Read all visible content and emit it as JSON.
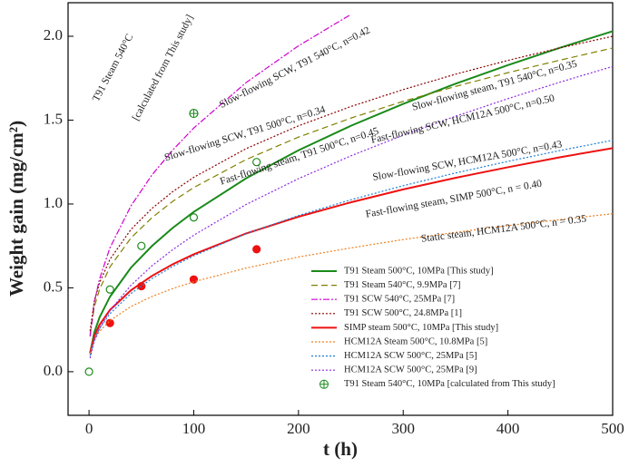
{
  "chart_data": {
    "type": "line",
    "xlabel": "t (h)",
    "ylabel": "Weight gain (mg/cm²)",
    "xlim": [
      -20,
      500
    ],
    "ylim": [
      -0.26,
      2.2
    ],
    "xticks": [
      0,
      100,
      200,
      300,
      400,
      500
    ],
    "yticks": [
      {
        "value": 0,
        "label": "0.0"
      },
      0.5,
      {
        "value": 1,
        "label": "1.0"
      },
      1.5,
      {
        "value": 2,
        "label": "2.0"
      }
    ],
    "x": [
      1,
      5,
      10,
      20,
      40,
      60,
      80,
      100,
      150,
      200,
      250,
      300,
      350,
      400,
      450,
      500
    ],
    "series": [
      {
        "name": "T91 Steam 500°C, 10MPa [This study]",
        "color": "#1a8a1a",
        "dash": "solid",
        "values": [
          0.109,
          0.233,
          0.323,
          0.447,
          0.62,
          0.749,
          0.858,
          0.953,
          1.153,
          1.32,
          1.466,
          1.597,
          1.717,
          1.828,
          1.932,
          2.03
        ],
        "points_x": [
          0,
          20,
          50,
          100,
          160
        ],
        "points_y": [
          0,
          0.49,
          0.75,
          0.92,
          1.25
        ],
        "points_fill": false
      },
      {
        "name": "T91 Steam 540°C, 9.9MPa  [7]",
        "color": "#808000",
        "dash": "dashed",
        "values": [
          0.219,
          0.385,
          0.49,
          0.625,
          0.797,
          0.918,
          1.016,
          1.098,
          1.265,
          1.399,
          1.512,
          1.612,
          1.701,
          1.783,
          1.858,
          1.93
        ]
      },
      {
        "name": "T91 SCW 540°C, 25MPa  [7]",
        "color": "#d000d0",
        "dash": "dashdot",
        "values": [
          0.21,
          0.413,
          0.552,
          0.739,
          0.988,
          1.172,
          1.322,
          1.453,
          1.724,
          1.943,
          2.13,
          null,
          null,
          null,
          null,
          null
        ]
      },
      {
        "name": "T91 SCW 500°C, 24.8MPa [1]",
        "color": "#8b0000",
        "dash": "dotted",
        "values": [
          0.242,
          0.418,
          0.53,
          0.67,
          0.848,
          0.973,
          1.074,
          1.159,
          1.33,
          1.466,
          1.581,
          1.682,
          1.774,
          1.856,
          1.931,
          2.0
        ]
      },
      {
        "name": "SIMP steam 500°C, 10MPa  [This study]",
        "color": "#ee1111",
        "dash": "solid",
        "values": [
          0.111,
          0.211,
          0.279,
          0.368,
          0.485,
          0.571,
          0.641,
          0.7,
          0.824,
          0.924,
          1.01,
          1.087,
          1.156,
          1.219,
          1.279,
          1.333
        ],
        "points_x": [
          20,
          50,
          100,
          160
        ],
        "points_y": [
          0.29,
          0.51,
          0.55,
          0.73
        ],
        "points_fill": true
      },
      {
        "name": "HCM12A Steam 500°C, 10.8MPa [5]",
        "color": "#f08020",
        "dash": "dotted",
        "values": [
          0.107,
          0.188,
          0.24,
          0.305,
          0.389,
          0.448,
          0.496,
          0.536,
          0.618,
          0.684,
          0.738,
          0.788,
          0.831,
          0.871,
          0.907,
          0.942
        ]
      },
      {
        "name": "HCM12A SCW 500°C, 25MPa [5]",
        "color": "#1e7fd8",
        "dash": "dotted",
        "values": [
          0.095,
          0.191,
          0.257,
          0.346,
          0.466,
          0.555,
          0.628,
          0.691,
          0.823,
          0.931,
          1.025,
          1.109,
          1.185,
          1.254,
          1.319,
          1.38
        ]
      },
      {
        "name": "HCM12A SCW 500°C, 25MPa [9]",
        "color": "#8a2be2",
        "dash": "dotted",
        "values": [
          0.081,
          0.182,
          0.257,
          0.364,
          0.515,
          0.631,
          0.728,
          0.814,
          0.997,
          1.151,
          1.287,
          1.41,
          1.523,
          1.628,
          1.727,
          1.82
        ]
      }
    ],
    "markers": {
      "name": "T91 Steam 540°C, 10MPa [calculated from This study]",
      "color": "#1a8a1a",
      "x": [
        100
      ],
      "y": [
        1.54
      ]
    },
    "annotations": [
      "T91 Steam 540°C",
      "[calculated from This study]",
      "Slow-flowing SCW, T91 540°C, n=0.42",
      "Slow-flowing SCW, T91 500°C, n=0.34",
      "Fast-flowing steam, T91 500°C, n=0.45",
      "Slow-flowing steam, T91 540°C, n=0.35",
      "Fast-flowing SCW, HCM12A 500°C, n=0.50",
      "Slow-flowing SCW, HCM12A 500°C, n=0.43",
      "Fast-flowing steam, SIMP 500°C, n = 0.40",
      "Static steam, HCM12A 500°C, n = 0.35"
    ]
  }
}
